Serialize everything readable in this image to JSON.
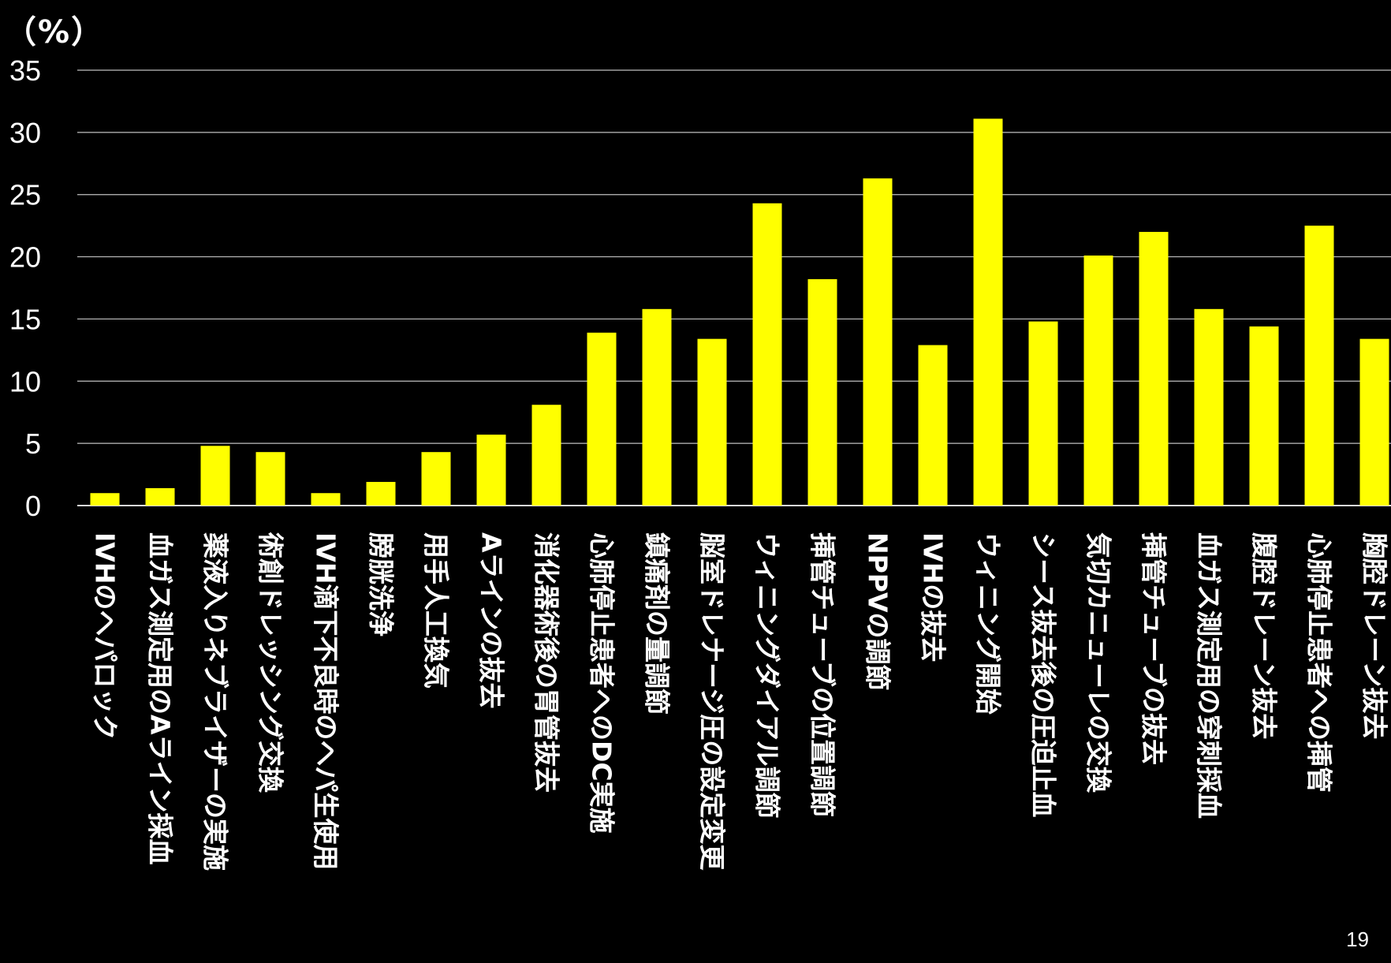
{
  "chart_data": {
    "type": "bar",
    "title": "",
    "ylabel": "（%）",
    "xlabel": "",
    "ylim": [
      0,
      35
    ],
    "yticks": [
      0,
      5,
      10,
      15,
      20,
      25,
      30,
      35
    ],
    "grid": true,
    "legend": "none",
    "bar_color": "#FFFF00",
    "background": "#000000",
    "categories": [
      "IVHのヘパロック",
      "血ガス測定用のAライン採血",
      "薬液入りネブライザーの実施",
      "術創ドレッシング交換",
      "IVH滴下不良時のヘパ生使用",
      "膀胱洗浄",
      "用手人工換気",
      "Aラインの抜去",
      "消化器術後の胃管抜去",
      "心肺停止患者へのDC実施",
      "鎮痛剤の量調節",
      "脳室ドレナージ圧の設定変更",
      "ウィニングダイアル調節",
      "挿管チューブの位置調節",
      "NPPVの調節",
      "IVHの抜去",
      "ウィニング開始",
      "シース抜去後の圧迫止血",
      "気切カニューレの交換",
      "挿管チューブの抜去",
      "血ガス測定用の穿刺採血",
      "腹腔ドレーン抜去",
      "心肺停止患者への挿管",
      "胸腔ドレーン抜去"
    ],
    "values": [
      1.0,
      1.4,
      4.8,
      4.3,
      1.0,
      1.9,
      4.3,
      5.7,
      8.1,
      13.9,
      15.8,
      13.4,
      24.3,
      18.2,
      26.3,
      12.9,
      31.1,
      14.8,
      20.1,
      22.0,
      15.8,
      14.4,
      22.5,
      13.4
    ]
  },
  "page": {
    "unit_label": "（%）",
    "page_number": "19"
  }
}
